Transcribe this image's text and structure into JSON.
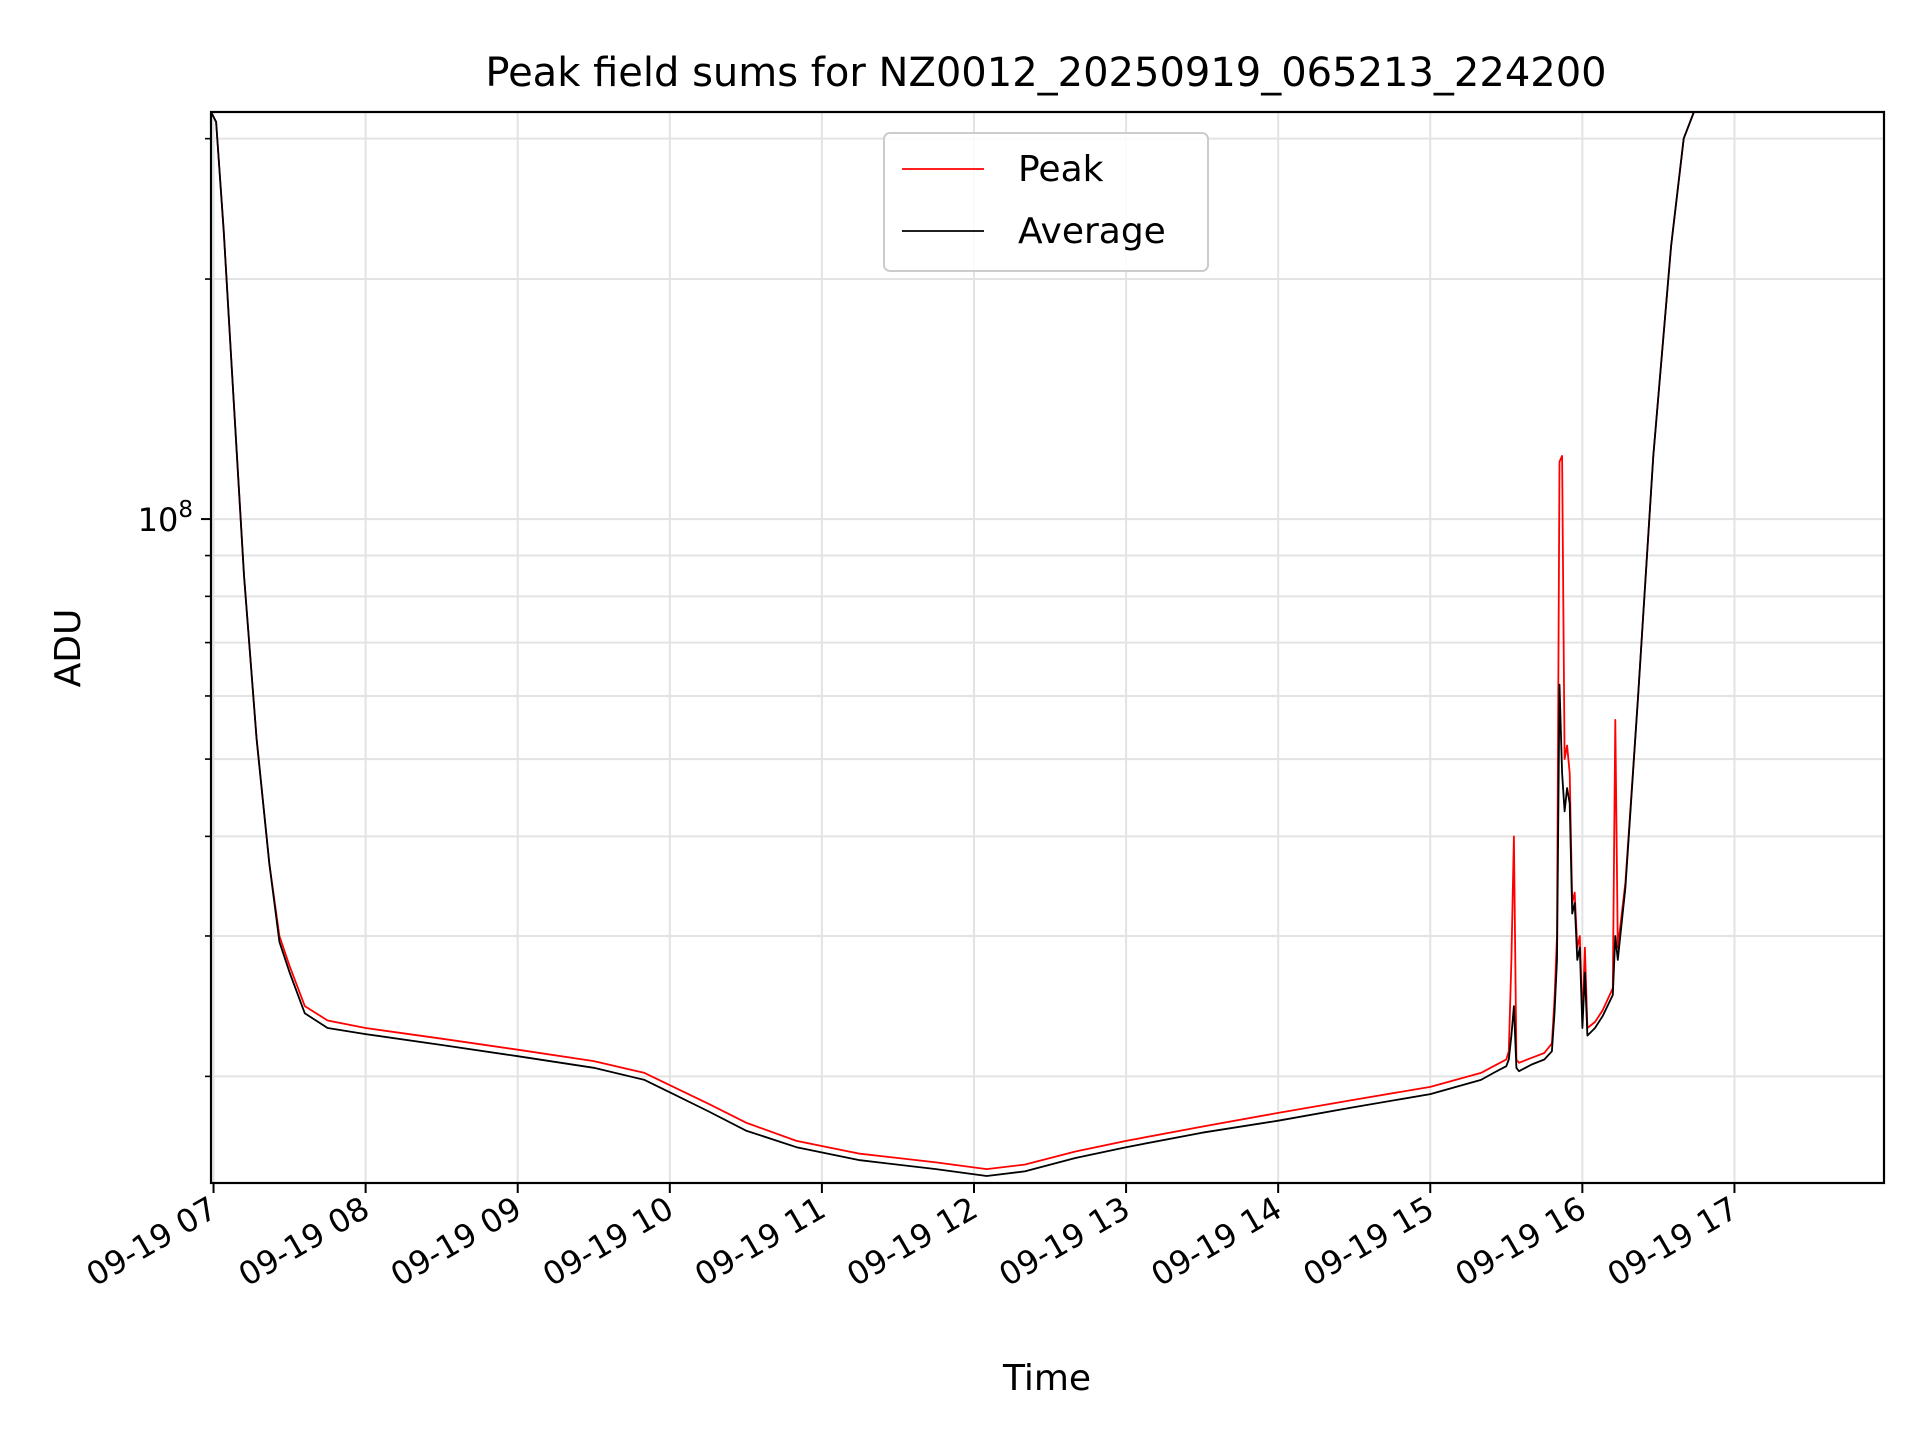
{
  "chart_data": {
    "type": "line",
    "title": "Peak field sums for NZ0012_20250919_065213_224200",
    "xlabel": "Time",
    "ylabel": "ADU",
    "y_scale": "log",
    "grid": true,
    "legend_position": "upper-center",
    "xlim": [
      "2025-09-19 06:59",
      "2025-09-19 17:59"
    ],
    "ylim": [
      14700000,
      324000000
    ],
    "x_ticks": [
      {
        "t": "2025-09-19 07:00",
        "label": "09-19 07"
      },
      {
        "t": "2025-09-19 08:00",
        "label": "09-19 08"
      },
      {
        "t": "2025-09-19 09:00",
        "label": "09-19 09"
      },
      {
        "t": "2025-09-19 10:00",
        "label": "09-19 10"
      },
      {
        "t": "2025-09-19 11:00",
        "label": "09-19 11"
      },
      {
        "t": "2025-09-19 12:00",
        "label": "09-19 12"
      },
      {
        "t": "2025-09-19 13:00",
        "label": "09-19 13"
      },
      {
        "t": "2025-09-19 14:00",
        "label": "09-19 14"
      },
      {
        "t": "2025-09-19 15:00",
        "label": "09-19 15"
      },
      {
        "t": "2025-09-19 16:00",
        "label": "09-19 16"
      },
      {
        "t": "2025-09-19 17:00",
        "label": "09-19 17"
      }
    ],
    "y_major_ticks": [
      {
        "value": 100000000,
        "base": "10",
        "exponent": "8"
      }
    ],
    "y_minor_ticks": [
      20000000,
      30000000,
      40000000,
      50000000,
      60000000,
      70000000,
      80000000,
      90000000,
      200000000,
      300000000
    ],
    "series": [
      {
        "name": "Peak",
        "color": "#ff0000",
        "points": [
          [
            "2025-09-19 06:59",
            325000000
          ],
          [
            "2025-09-19 07:01",
            315000000
          ],
          [
            "2025-09-19 07:04",
            230000000
          ],
          [
            "2025-09-19 07:08",
            140000000
          ],
          [
            "2025-09-19 07:12",
            85000000
          ],
          [
            "2025-09-19 07:17",
            53000000
          ],
          [
            "2025-09-19 07:22",
            37000000
          ],
          [
            "2025-09-19 07:26",
            30000000
          ],
          [
            "2025-09-19 07:30",
            27500000
          ],
          [
            "2025-09-19 07:36",
            24500000
          ],
          [
            "2025-09-19 07:45",
            23500000
          ],
          [
            "2025-09-19 08:00",
            23000000
          ],
          [
            "2025-09-19 08:30",
            22300000
          ],
          [
            "2025-09-19 09:00",
            21600000
          ],
          [
            "2025-09-19 09:30",
            20900000
          ],
          [
            "2025-09-19 09:50",
            20200000
          ],
          [
            "2025-09-19 10:00",
            19500000
          ],
          [
            "2025-09-19 10:15",
            18500000
          ],
          [
            "2025-09-19 10:30",
            17500000
          ],
          [
            "2025-09-19 10:50",
            16600000
          ],
          [
            "2025-09-19 11:15",
            16000000
          ],
          [
            "2025-09-19 11:45",
            15600000
          ],
          [
            "2025-09-19 12:05",
            15300000
          ],
          [
            "2025-09-19 12:20",
            15500000
          ],
          [
            "2025-09-19 12:40",
            16100000
          ],
          [
            "2025-09-19 13:00",
            16600000
          ],
          [
            "2025-09-19 13:30",
            17300000
          ],
          [
            "2025-09-19 14:00",
            18000000
          ],
          [
            "2025-09-19 14:30",
            18700000
          ],
          [
            "2025-09-19 15:00",
            19400000
          ],
          [
            "2025-09-19 15:20",
            20200000
          ],
          [
            "2025-09-19 15:25",
            20600000
          ],
          [
            "2025-09-19 15:30",
            21000000
          ],
          [
            "2025-09-19 15:31",
            21500000
          ],
          [
            "2025-09-19 15:32",
            28000000
          ],
          [
            "2025-09-19 15:33",
            40000000
          ],
          [
            "2025-09-19 15:34",
            21000000
          ],
          [
            "2025-09-19 15:35",
            20800000
          ],
          [
            "2025-09-19 15:40",
            21100000
          ],
          [
            "2025-09-19 15:45",
            21400000
          ],
          [
            "2025-09-19 15:48",
            22000000
          ],
          [
            "2025-09-19 15:49",
            25000000
          ],
          [
            "2025-09-19 15:50",
            30000000
          ],
          [
            "2025-09-19 15:51",
            118000000
          ],
          [
            "2025-09-19 15:52",
            120000000
          ],
          [
            "2025-09-19 15:53",
            50000000
          ],
          [
            "2025-09-19 15:54",
            52000000
          ],
          [
            "2025-09-19 15:55",
            48000000
          ],
          [
            "2025-09-19 15:56",
            33000000
          ],
          [
            "2025-09-19 15:57",
            34000000
          ],
          [
            "2025-09-19 15:58",
            29000000
          ],
          [
            "2025-09-19 15:59",
            30000000
          ],
          [
            "2025-09-19 16:00",
            23500000
          ],
          [
            "2025-09-19 16:01",
            29000000
          ],
          [
            "2025-09-19 16:02",
            23000000
          ],
          [
            "2025-09-19 16:05",
            23400000
          ],
          [
            "2025-09-19 16:08",
            24200000
          ],
          [
            "2025-09-19 16:12",
            25800000
          ],
          [
            "2025-09-19 16:13",
            56000000
          ],
          [
            "2025-09-19 16:14",
            29000000
          ],
          [
            "2025-09-19 16:17",
            35000000
          ],
          [
            "2025-09-19 16:22",
            60000000
          ],
          [
            "2025-09-19 16:28",
            120000000
          ],
          [
            "2025-09-19 16:35",
            220000000
          ],
          [
            "2025-09-19 16:40",
            300000000
          ],
          [
            "2025-09-19 16:44",
            325000000
          ],
          [
            "2025-09-19 17:59",
            325000000
          ]
        ]
      },
      {
        "name": "Average",
        "color": "#000000",
        "points": [
          [
            "2025-09-19 06:59",
            325000000
          ],
          [
            "2025-09-19 07:01",
            315000000
          ],
          [
            "2025-09-19 07:04",
            230000000
          ],
          [
            "2025-09-19 07:08",
            140000000
          ],
          [
            "2025-09-19 07:12",
            85000000
          ],
          [
            "2025-09-19 07:17",
            53000000
          ],
          [
            "2025-09-19 07:22",
            37000000
          ],
          [
            "2025-09-19 07:26",
            29500000
          ],
          [
            "2025-09-19 07:30",
            27000000
          ],
          [
            "2025-09-19 07:36",
            24000000
          ],
          [
            "2025-09-19 07:45",
            23000000
          ],
          [
            "2025-09-19 08:00",
            22600000
          ],
          [
            "2025-09-19 08:30",
            21900000
          ],
          [
            "2025-09-19 09:00",
            21200000
          ],
          [
            "2025-09-19 09:30",
            20500000
          ],
          [
            "2025-09-19 09:50",
            19800000
          ],
          [
            "2025-09-19 10:00",
            19100000
          ],
          [
            "2025-09-19 10:15",
            18100000
          ],
          [
            "2025-09-19 10:30",
            17100000
          ],
          [
            "2025-09-19 10:50",
            16300000
          ],
          [
            "2025-09-19 11:15",
            15700000
          ],
          [
            "2025-09-19 11:45",
            15300000
          ],
          [
            "2025-09-19 12:05",
            15000000
          ],
          [
            "2025-09-19 12:20",
            15200000
          ],
          [
            "2025-09-19 12:40",
            15800000
          ],
          [
            "2025-09-19 13:00",
            16300000
          ],
          [
            "2025-09-19 13:30",
            17000000
          ],
          [
            "2025-09-19 14:00",
            17600000
          ],
          [
            "2025-09-19 14:30",
            18300000
          ],
          [
            "2025-09-19 15:00",
            19000000
          ],
          [
            "2025-09-19 15:20",
            19800000
          ],
          [
            "2025-09-19 15:25",
            20200000
          ],
          [
            "2025-09-19 15:30",
            20600000
          ],
          [
            "2025-09-19 15:31",
            21000000
          ],
          [
            "2025-09-19 15:32",
            22500000
          ],
          [
            "2025-09-19 15:33",
            24500000
          ],
          [
            "2025-09-19 15:34",
            20500000
          ],
          [
            "2025-09-19 15:35",
            20300000
          ],
          [
            "2025-09-19 15:40",
            20700000
          ],
          [
            "2025-09-19 15:45",
            21000000
          ],
          [
            "2025-09-19 15:48",
            21500000
          ],
          [
            "2025-09-19 15:49",
            24000000
          ],
          [
            "2025-09-19 15:50",
            28000000
          ],
          [
            "2025-09-19 15:51",
            62000000
          ],
          [
            "2025-09-19 15:52",
            48000000
          ],
          [
            "2025-09-19 15:53",
            43000000
          ],
          [
            "2025-09-19 15:54",
            46000000
          ],
          [
            "2025-09-19 15:55",
            44000000
          ],
          [
            "2025-09-19 15:56",
            32000000
          ],
          [
            "2025-09-19 15:57",
            33000000
          ],
          [
            "2025-09-19 15:58",
            28000000
          ],
          [
            "2025-09-19 15:59",
            29000000
          ],
          [
            "2025-09-19 16:00",
            23000000
          ],
          [
            "2025-09-19 16:01",
            27000000
          ],
          [
            "2025-09-19 16:02",
            22500000
          ],
          [
            "2025-09-19 16:05",
            23000000
          ],
          [
            "2025-09-19 16:08",
            23800000
          ],
          [
            "2025-09-19 16:12",
            25300000
          ],
          [
            "2025-09-19 16:13",
            30000000
          ],
          [
            "2025-09-19 16:14",
            28000000
          ],
          [
            "2025-09-19 16:17",
            34500000
          ],
          [
            "2025-09-19 16:22",
            60000000
          ],
          [
            "2025-09-19 16:28",
            120000000
          ],
          [
            "2025-09-19 16:35",
            220000000
          ],
          [
            "2025-09-19 16:40",
            300000000
          ],
          [
            "2025-09-19 16:44",
            325000000
          ],
          [
            "2025-09-19 17:59",
            325000000
          ]
        ]
      }
    ]
  }
}
